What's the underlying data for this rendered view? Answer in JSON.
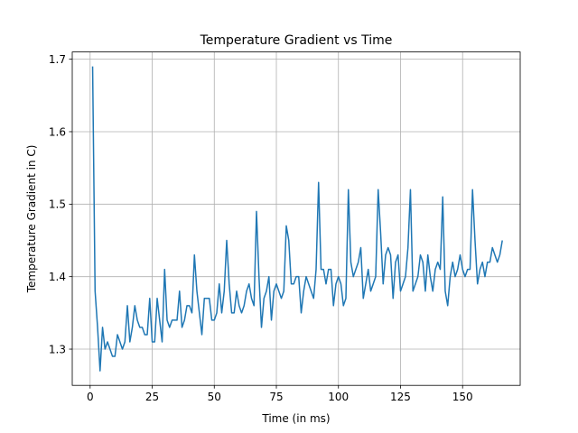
{
  "chart_data": {
    "type": "line",
    "title": "Temperature Gradient vs Time",
    "xlabel": "Time (in ms)",
    "ylabel": "Temperature Gradient in C)",
    "xlim": [
      -7.2,
      173.2
    ],
    "ylim": [
      1.25,
      1.71
    ],
    "xticks": [
      0,
      25,
      50,
      75,
      100,
      125,
      150
    ],
    "xtick_labels": [
      "0",
      "25",
      "50",
      "75",
      "100",
      "125",
      "150"
    ],
    "yticks": [
      1.3,
      1.4,
      1.5,
      1.6,
      1.7
    ],
    "ytick_labels": [
      "1.3",
      "1.4",
      "1.5",
      "1.6",
      "1.7"
    ],
    "grid": true,
    "series": [
      {
        "color": "#1f77b4",
        "x_start": 1,
        "x_step": 1,
        "values": [
          1.69,
          1.38,
          1.33,
          1.27,
          1.33,
          1.3,
          1.31,
          1.3,
          1.29,
          1.29,
          1.32,
          1.31,
          1.3,
          1.31,
          1.36,
          1.31,
          1.33,
          1.36,
          1.34,
          1.33,
          1.33,
          1.32,
          1.32,
          1.37,
          1.31,
          1.31,
          1.37,
          1.34,
          1.31,
          1.41,
          1.34,
          1.33,
          1.34,
          1.34,
          1.34,
          1.38,
          1.33,
          1.34,
          1.36,
          1.36,
          1.35,
          1.43,
          1.38,
          1.35,
          1.32,
          1.37,
          1.37,
          1.37,
          1.34,
          1.34,
          1.35,
          1.39,
          1.35,
          1.38,
          1.45,
          1.39,
          1.35,
          1.35,
          1.38,
          1.36,
          1.35,
          1.36,
          1.38,
          1.39,
          1.37,
          1.36,
          1.49,
          1.4,
          1.33,
          1.37,
          1.38,
          1.4,
          1.34,
          1.38,
          1.39,
          1.38,
          1.37,
          1.38,
          1.47,
          1.45,
          1.39,
          1.39,
          1.4,
          1.4,
          1.35,
          1.38,
          1.4,
          1.39,
          1.38,
          1.37,
          1.41,
          1.53,
          1.41,
          1.41,
          1.39,
          1.41,
          1.41,
          1.36,
          1.39,
          1.4,
          1.39,
          1.36,
          1.37,
          1.52,
          1.42,
          1.4,
          1.41,
          1.42,
          1.44,
          1.37,
          1.39,
          1.41,
          1.38,
          1.39,
          1.4,
          1.52,
          1.46,
          1.39,
          1.43,
          1.44,
          1.43,
          1.37,
          1.42,
          1.43,
          1.38,
          1.39,
          1.4,
          1.44,
          1.52,
          1.38,
          1.39,
          1.4,
          1.43,
          1.42,
          1.38,
          1.43,
          1.4,
          1.38,
          1.41,
          1.42,
          1.41,
          1.51,
          1.38,
          1.36,
          1.4,
          1.42,
          1.4,
          1.41,
          1.43,
          1.41,
          1.4,
          1.41,
          1.41,
          1.52,
          1.45,
          1.39,
          1.41,
          1.42,
          1.4,
          1.42,
          1.42,
          1.44,
          1.43,
          1.42,
          1.43,
          1.45
        ]
      }
    ]
  }
}
